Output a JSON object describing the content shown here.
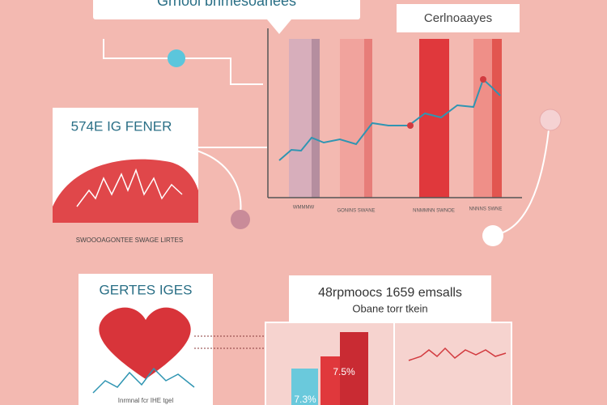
{
  "header": {
    "title": "Grnool bhmesoanees"
  },
  "top_chart": {
    "label": "Cerlnoaayes",
    "bar_labels": [
      "WMMMW",
      "GONINS SWANE",
      "NNMMNN SWNOE",
      "NNNNS SWNE"
    ]
  },
  "left_panel": {
    "title": "574E IG FENER",
    "caption": "SWOOOAGONTEE SWAGE LIRTES"
  },
  "bottom_left": {
    "title": "GERTES IGES",
    "caption": "Inrmnal fcr IHE tgel"
  },
  "bottom_chart": {
    "title": "48rpmoocs 1659 emsalls",
    "subtitle": "Obane torr tkein",
    "bar_labels": [
      "7.3%",
      "7.5%"
    ]
  }
}
